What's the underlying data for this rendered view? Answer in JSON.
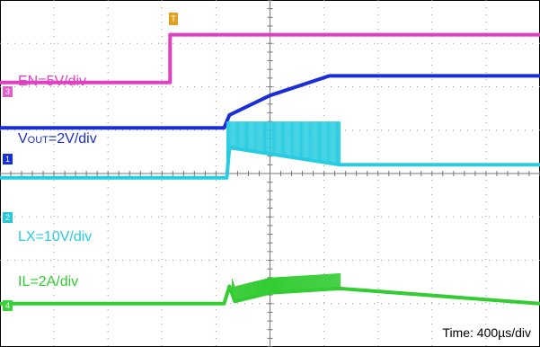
{
  "chart_data": {
    "type": "line",
    "title": "",
    "grid": {
      "divisions_x": 10,
      "divisions_y": 8
    },
    "time_label": "Time: 400µs/div",
    "trigger_marker": "T",
    "x_range_divs": [
      0,
      10
    ],
    "series": [
      {
        "name": "EN=5V/div",
        "label": "EN=5V/div",
        "channel_marker": "3",
        "color": "#e040c0",
        "points": [
          [
            0,
            6.1
          ],
          [
            3.15,
            6.1
          ],
          [
            3.15,
            7.2
          ],
          [
            10,
            7.2
          ]
        ]
      },
      {
        "name": "VOUT=2V/div",
        "label_main": "V",
        "label_sub": "OUT",
        "label_rest": "=2V/div",
        "channel_marker": "1",
        "color": "#1a2ed8",
        "points": [
          [
            0,
            5.05
          ],
          [
            4.15,
            5.05
          ],
          [
            4.25,
            5.35
          ],
          [
            5.0,
            5.8
          ],
          [
            6.1,
            6.25
          ],
          [
            10,
            6.25
          ]
        ]
      },
      {
        "name": "LX=10V/div",
        "label": "LX=10V/div",
        "channel_marker": "2",
        "color": "#28cce0",
        "points": [
          [
            0,
            3.9
          ],
          [
            4.2,
            3.9
          ],
          [
            4.25,
            4.6
          ],
          [
            6.3,
            4.2
          ],
          [
            10,
            4.2
          ]
        ],
        "switching_region": [
          4.2,
          6.3
        ],
        "switch_high": 5.2
      },
      {
        "name": "IL=2A/div",
        "label": "IL=2A/div",
        "channel_marker": "4",
        "color": "#33cc33",
        "points": [
          [
            0,
            1.0
          ],
          [
            4.15,
            1.0
          ],
          [
            4.25,
            1.4
          ],
          [
            4.35,
            1.05
          ],
          [
            5.0,
            1.25
          ],
          [
            6.3,
            1.35
          ],
          [
            10,
            1.0
          ]
        ],
        "switching_region": [
          4.3,
          6.3
        ]
      }
    ]
  }
}
